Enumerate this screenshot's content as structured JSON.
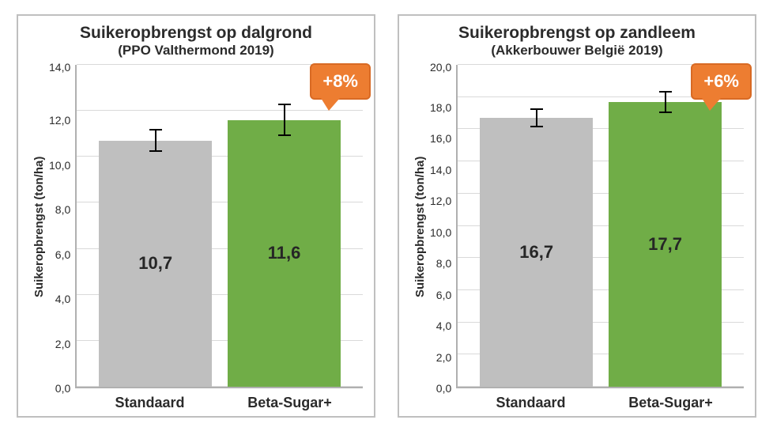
{
  "charts": [
    {
      "title": "Suikeropbrengst op dalgrond",
      "subtitle": "(PPO Valthermond 2019)",
      "title_fontsize": 21,
      "subtitle_fontsize": 17,
      "ylabel": "Suikeropbrengst (ton/ha)",
      "type": "bar",
      "categories": [
        "Standaard",
        "Beta-Sugar+"
      ],
      "values": [
        10.7,
        11.6
      ],
      "display_values": [
        "10,7",
        "11,6"
      ],
      "errors": [
        0.5,
        0.7
      ],
      "bar_colors": [
        "#bfbfbf",
        "#70ad47"
      ],
      "ylim": [
        0.0,
        14.0
      ],
      "ytick_step": 2.0,
      "ytick_labels": [
        "14,0",
        "12,0",
        "10,0",
        "8,0",
        "6,0",
        "4,0",
        "2,0",
        "0,0"
      ],
      "grid_color": "#d9d9d9",
      "axis_color": "#b0b0b0",
      "background_color": "#ffffff",
      "panel_border_color": "#bfbfbf",
      "font_family": "Arial",
      "callout": {
        "text": "+8%",
        "bg_color": "#ed7d31",
        "text_color": "#ffffff",
        "border_color": "#d86a24"
      }
    },
    {
      "title": "Suikeropbrengst op zandleem",
      "subtitle": "(Akkerbouwer België 2019)",
      "title_fontsize": 21,
      "subtitle_fontsize": 17,
      "ylabel": "Suikeropbrengst (ton/ha)",
      "type": "bar",
      "categories": [
        "Standaard",
        "Beta-Sugar+"
      ],
      "values": [
        16.7,
        17.7
      ],
      "display_values": [
        "16,7",
        "17,7"
      ],
      "errors": [
        0.6,
        0.7
      ],
      "bar_colors": [
        "#bfbfbf",
        "#70ad47"
      ],
      "ylim": [
        0.0,
        20.0
      ],
      "ytick_step": 2.0,
      "ytick_labels": [
        "20,0",
        "18,0",
        "16,0",
        "14,0",
        "12,0",
        "10,0",
        "8,0",
        "6,0",
        "4,0",
        "2,0",
        "0,0"
      ],
      "grid_color": "#d9d9d9",
      "axis_color": "#b0b0b0",
      "background_color": "#ffffff",
      "panel_border_color": "#bfbfbf",
      "font_family": "Arial",
      "callout": {
        "text": "+6%",
        "bg_color": "#ed7d31",
        "text_color": "#ffffff",
        "border_color": "#d86a24"
      }
    }
  ]
}
